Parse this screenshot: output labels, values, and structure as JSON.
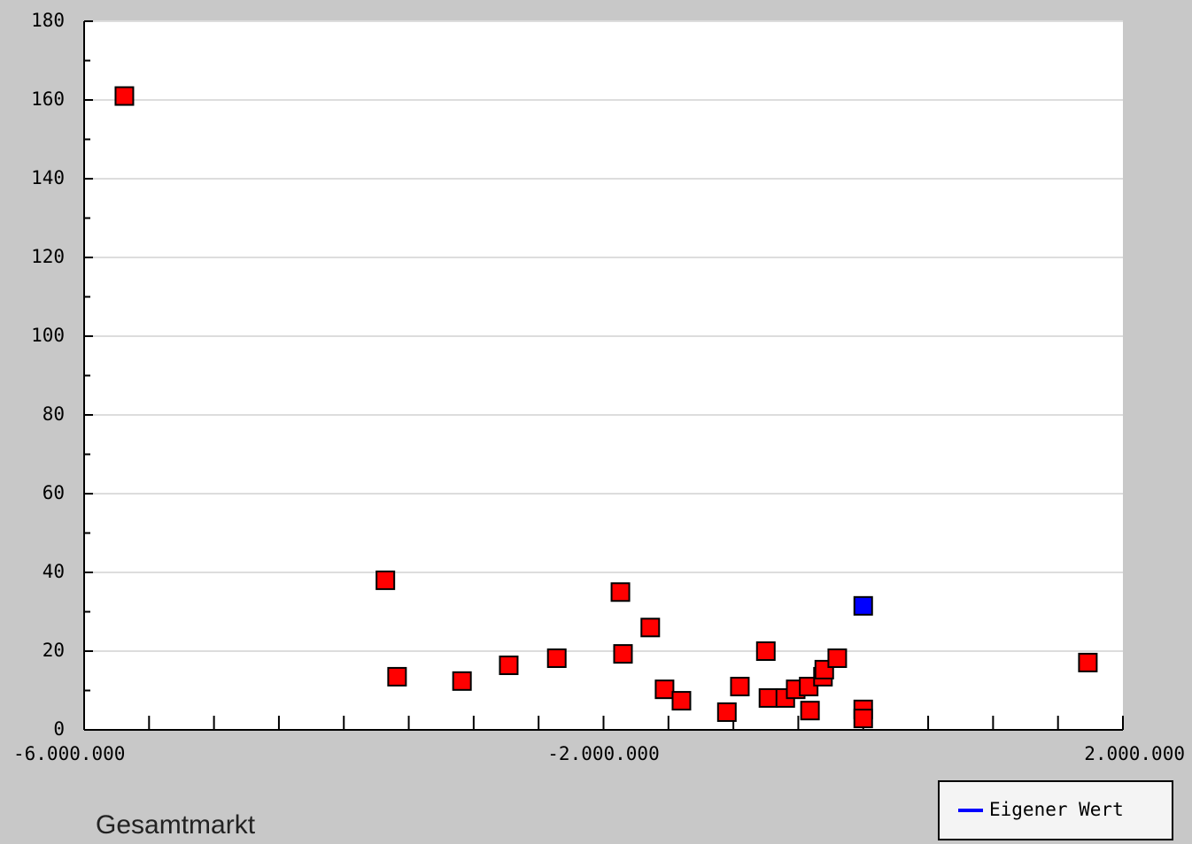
{
  "chart_data": {
    "type": "scatter",
    "caption": "Gesamtmarkt",
    "xlim": [
      -6000000,
      2000000
    ],
    "xticks": [
      {
        "value": -6000000,
        "label": "-6.000.000"
      },
      {
        "value": -2000000,
        "label": "-2.000.000"
      },
      {
        "value": 2000000,
        "label": "2.000.000"
      }
    ],
    "xminor_ticks": [
      -5500000,
      -5000000,
      -4500000,
      -4000000,
      -3500000,
      -3000000,
      -2500000,
      -1500000,
      -1000000,
      -500000,
      0,
      500000,
      1000000,
      1500000
    ],
    "ylim": [
      0,
      180
    ],
    "yticks": [
      0,
      20,
      40,
      60,
      80,
      100,
      120,
      140,
      160,
      180
    ],
    "yminor_ticks": [
      10,
      30,
      50,
      70,
      90,
      110,
      130,
      150,
      170
    ],
    "grid": true,
    "legend": "bottom-right",
    "series": [
      {
        "color": "#ff0000",
        "x": [
          -5690000,
          -3680000,
          -3590000,
          -3090000,
          -2730000,
          -2360000,
          -1870000,
          -1850000,
          -1640000,
          -1530000,
          -1400000,
          -1050000,
          -950000,
          -750000,
          -730000,
          -600000,
          -520000,
          -420000,
          -410000,
          -310000,
          -300000,
          -200000,
          0,
          0,
          1730000
        ],
        "values": [
          161,
          38,
          13.5,
          12.4,
          16.4,
          18.2,
          35,
          19.3,
          26,
          10.3,
          7.4,
          4.5,
          11,
          20,
          8.1,
          8.1,
          10.3,
          11,
          4.9,
          13.5,
          15.3,
          18.2,
          5.2,
          2.9,
          17.1
        ]
      },
      {
        "name": "Eigener Wert",
        "color": "#0000ff",
        "x": [
          0
        ],
        "values": [
          31.5
        ]
      }
    ]
  }
}
